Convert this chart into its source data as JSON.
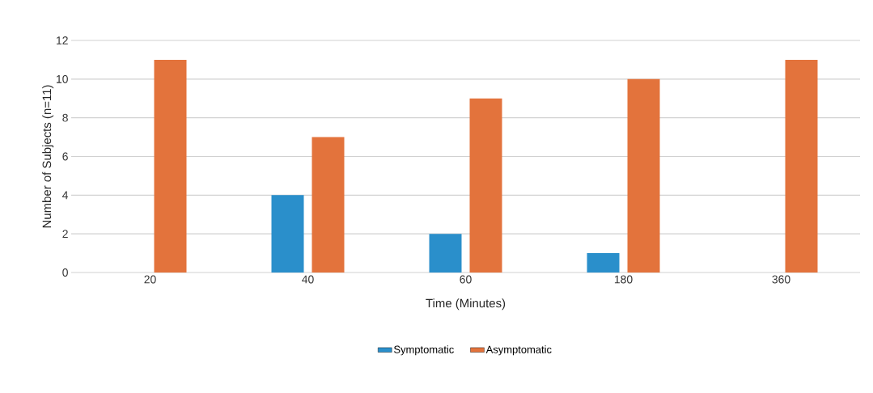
{
  "chart_data": {
    "type": "bar",
    "xlabel": "Time (Minutes)",
    "ylabel": "Number  of Subjects (n=11)",
    "categories": [
      "20",
      "40",
      "60",
      "180",
      "360"
    ],
    "series": [
      {
        "name": "Symptomatic",
        "color": "#2a8fcb",
        "values": [
          0,
          4,
          2,
          1,
          0
        ]
      },
      {
        "name": "Asymptomatic",
        "color": "#e3733c",
        "values": [
          11,
          7,
          9,
          10,
          11
        ]
      }
    ],
    "ylim": [
      0,
      12
    ],
    "yticks": [
      0,
      2,
      4,
      6,
      8,
      10,
      12
    ],
    "grid": "y",
    "legend": "bottom"
  }
}
